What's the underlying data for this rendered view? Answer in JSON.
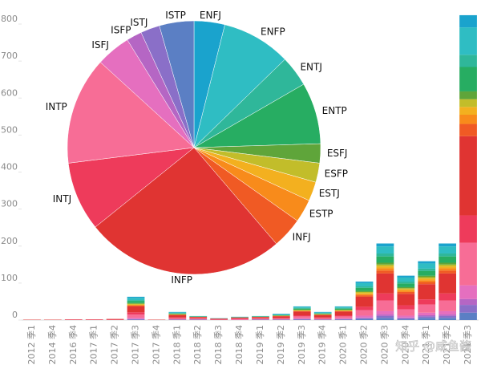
{
  "chart_data": [
    {
      "type": "bar",
      "stacked": true,
      "categories": [
        "2012 季1",
        "2014 季4",
        "2016 季4",
        "2017 季1",
        "2017 季2",
        "2017 季3",
        "2017 季4",
        "2018 季1",
        "2018 季2",
        "2018 季3",
        "2018 季4",
        "2019 季1",
        "2019 季2",
        "2019 季3",
        "2019 季4",
        "2020 季1",
        "2020 季2",
        "2020 季3",
        "2020 季4",
        "2021 季1",
        "2021 季2",
        "2021 季3"
      ],
      "series": [
        {
          "color": "#5b7fc4",
          "values": [
            0,
            0,
            0,
            0,
            0,
            1,
            0,
            1,
            1,
            0,
            0,
            1,
            1,
            1,
            1,
            1,
            3,
            6,
            2,
            6,
            6,
            20
          ]
        },
        {
          "color": "#8a6fc8",
          "values": [
            0,
            0,
            0,
            0,
            0,
            1,
            0,
            0,
            0,
            0,
            0,
            0,
            0,
            1,
            0,
            1,
            2,
            5,
            3,
            4,
            5,
            21
          ]
        },
        {
          "color": "#b566c4",
          "values": [
            0,
            0,
            0,
            0,
            0,
            1,
            0,
            0,
            0,
            0,
            0,
            0,
            0,
            1,
            0,
            1,
            2,
            4,
            2,
            3,
            4,
            16
          ]
        },
        {
          "color": "#e56fbf",
          "values": [
            0,
            0,
            0,
            0,
            0,
            3,
            0,
            1,
            1,
            0,
            1,
            1,
            1,
            2,
            1,
            2,
            5,
            9,
            5,
            7,
            9,
            37
          ]
        },
        {
          "color": "#f76d96",
          "values": [
            0,
            0,
            1,
            1,
            1,
            9,
            0,
            3,
            2,
            1,
            2,
            2,
            2,
            5,
            3,
            5,
            15,
            29,
            17,
            22,
            29,
            115
          ]
        },
        {
          "color": "#ee3b5b",
          "values": [
            0,
            0,
            0,
            0,
            0,
            6,
            0,
            2,
            1,
            1,
            1,
            1,
            2,
            3,
            2,
            3,
            9,
            19,
            11,
            14,
            19,
            74
          ]
        },
        {
          "color": "#e03432",
          "values": [
            1,
            1,
            1,
            1,
            2,
            16,
            1,
            6,
            3,
            2,
            3,
            3,
            4,
            10,
            6,
            10,
            27,
            54,
            31,
            41,
            54,
            214
          ]
        },
        {
          "color": "#f05a24",
          "values": [
            0,
            0,
            0,
            0,
            0,
            2,
            0,
            1,
            1,
            0,
            0,
            1,
            1,
            1,
            1,
            1,
            4,
            8,
            5,
            6,
            8,
            33
          ]
        },
        {
          "color": "#f88b1b",
          "values": [
            0,
            0,
            0,
            0,
            0,
            2,
            0,
            1,
            0,
            0,
            0,
            0,
            0,
            1,
            1,
            1,
            3,
            6,
            4,
            5,
            6,
            25
          ]
        },
        {
          "color": "#f3b01f",
          "values": [
            0,
            0,
            0,
            0,
            0,
            1,
            0,
            0,
            0,
            0,
            0,
            0,
            1,
            1,
            0,
            1,
            3,
            5,
            3,
            4,
            5,
            21
          ]
        },
        {
          "color": "#c2bd2a",
          "values": [
            0,
            0,
            0,
            0,
            0,
            2,
            0,
            1,
            0,
            0,
            0,
            0,
            0,
            1,
            1,
            1,
            3,
            5,
            3,
            4,
            5,
            21
          ]
        },
        {
          "color": "#5fa53a",
          "values": [
            0,
            0,
            0,
            0,
            0,
            2,
            0,
            0,
            0,
            0,
            0,
            0,
            0,
            1,
            0,
            1,
            3,
            5,
            3,
            4,
            5,
            21
          ]
        },
        {
          "color": "#27ad62",
          "values": [
            0,
            0,
            0,
            0,
            0,
            5,
            0,
            2,
            1,
            0,
            1,
            1,
            1,
            3,
            2,
            3,
            8,
            17,
            10,
            13,
            17,
            66
          ]
        },
        {
          "color": "#2fb79a",
          "values": [
            0,
            0,
            0,
            0,
            0,
            3,
            0,
            1,
            0,
            0,
            0,
            0,
            1,
            2,
            1,
            2,
            4,
            8,
            5,
            6,
            8,
            33
          ]
        },
        {
          "color": "#2fbdc3",
          "values": [
            0,
            0,
            0,
            0,
            0,
            6,
            0,
            2,
            1,
            1,
            1,
            1,
            2,
            3,
            2,
            3,
            9,
            19,
            11,
            14,
            19,
            74
          ]
        },
        {
          "color": "#1aa3cd",
          "values": [
            0,
            0,
            0,
            0,
            0,
            3,
            0,
            1,
            0,
            0,
            0,
            0,
            1,
            1,
            1,
            1,
            4,
            8,
            5,
            6,
            8,
            33
          ]
        }
      ],
      "ylim": [
        0,
        800
      ],
      "yticks": [
        0,
        100,
        200,
        300,
        400,
        500,
        600,
        700,
        800
      ]
    },
    {
      "type": "pie",
      "categories": [
        "ENFJ",
        "ENFP",
        "ENTJ",
        "ENTP",
        "ESFJ",
        "ESFP",
        "ESTJ",
        "ESTP",
        "INFJ",
        "INFP",
        "INTJ",
        "INTP",
        "ISFJ",
        "ISFP",
        "ISTJ",
        "ISTP"
      ],
      "values": [
        4,
        9,
        4,
        8,
        2.5,
        2.5,
        2.5,
        3,
        4,
        26,
        9,
        14,
        4.5,
        2,
        2.5,
        4.5
      ],
      "colors": [
        "#1aa3cd",
        "#2fbdc3",
        "#2fb79a",
        "#27ad62",
        "#5fa53a",
        "#c2bd2a",
        "#f3b01f",
        "#f88b1b",
        "#f05a24",
        "#e03432",
        "#ee3b5b",
        "#f76d96",
        "#e56fbf",
        "#b566c4",
        "#8a6fc8",
        "#5b7fc4"
      ]
    }
  ],
  "watermark": "知乎 @咸鱼酱"
}
